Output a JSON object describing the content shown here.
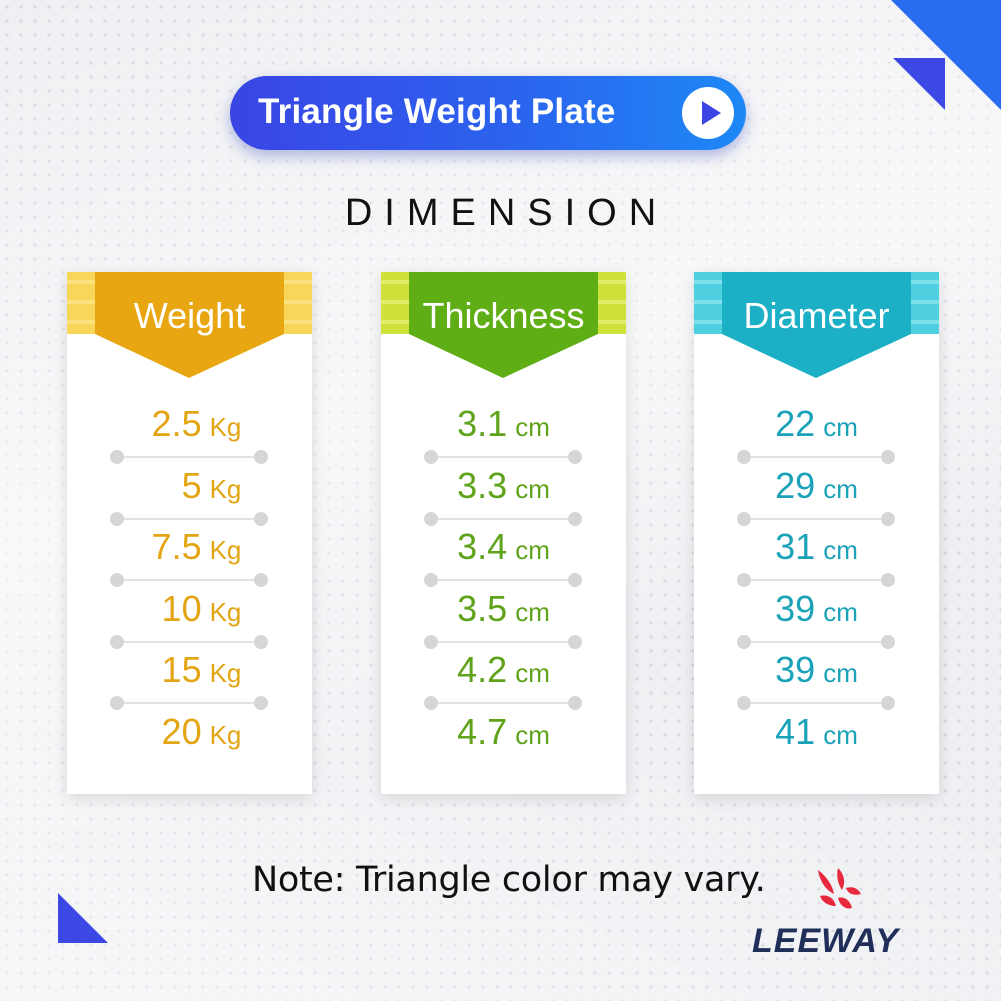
{
  "title": "Triangle Weight Plate",
  "section_heading": "DIMENSION",
  "columns": [
    {
      "title": "Weight",
      "color": "#e3a513",
      "unit": "Kg",
      "values": [
        "2.5",
        "5",
        "7.5",
        "10",
        "15",
        "20"
      ]
    },
    {
      "title": "Thickness",
      "color": "#5ea31a",
      "unit": "cm",
      "values": [
        "3.1",
        "3.3",
        "3.4",
        "3.5",
        "4.2",
        "4.7"
      ]
    },
    {
      "title": "Diameter",
      "color": "#1aa3b8",
      "unit": "cm",
      "values": [
        "22",
        "29",
        "31",
        "39",
        "39",
        "41"
      ]
    }
  ],
  "note": "Note: Triangle color may vary.",
  "brand": "LEEWAY",
  "colors": {
    "accent_blue": "#2f55ea",
    "weight_header": "#e8a712",
    "thickness_header": "#5fae15",
    "diameter_header": "#1bb0c6"
  },
  "icons": {
    "play": "play-icon",
    "logo": "leeway-logo-icon"
  }
}
